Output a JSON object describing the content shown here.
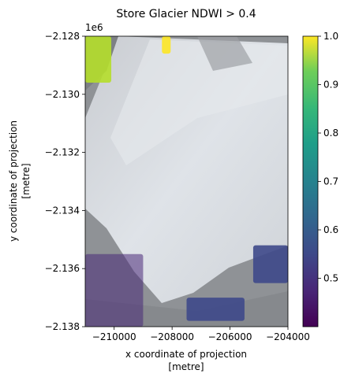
{
  "chart_data": {
    "type": "heatmap",
    "title": "Store Glacier NDWI > 0.4",
    "xlabel_line1": "x coordinate of projection",
    "xlabel_line2": "[metre]",
    "ylabel_line1": "y coordinate of projection",
    "ylabel_line2": "[metre]",
    "y_offset_text": "1e6",
    "xlim": [
      -211000,
      -204000
    ],
    "ylim": [
      -2.138,
      -2.128
    ],
    "x_ticks": [
      -210000,
      -208000,
      -206000,
      -204000
    ],
    "x_tick_labels": [
      "−210000",
      "−208000",
      "−206000",
      "−204000"
    ],
    "y_ticks": [
      -2.128,
      -2.13,
      -2.132,
      -2.134,
      -2.136,
      -2.138
    ],
    "y_tick_labels": [
      "−2.128",
      "−2.130",
      "−2.132",
      "−2.134",
      "−2.136",
      "−2.138"
    ],
    "colorbar": {
      "colormap": "viridis",
      "range": [
        0.4,
        1.0
      ],
      "ticks": [
        0.5,
        0.6,
        0.7,
        0.8,
        0.9,
        1.0
      ],
      "tick_labels": [
        "0.5",
        "0.6",
        "0.7",
        "0.8",
        "0.9",
        "1.0"
      ]
    },
    "overlay_regions": [
      {
        "name": "top-left water",
        "x": [
          -211000,
          -210100
        ],
        "y": [
          -2.1296,
          -2.128
        ],
        "ndwi": 0.9
      },
      {
        "name": "top fjord patch",
        "x": [
          -208350,
          -208050
        ],
        "y": [
          -2.1286,
          -2.128
        ],
        "ndwi": 0.98
      },
      {
        "name": "right ice-front melt pond",
        "x": [
          -205200,
          -204000
        ],
        "y": [
          -2.1365,
          -2.1352
        ],
        "ndwi": 0.55
      },
      {
        "name": "bottom melt pond",
        "x": [
          -207500,
          -205500
        ],
        "y": [
          -2.1378,
          -2.137
        ],
        "ndwi": 0.55
      },
      {
        "name": "bottom-left noise",
        "x": [
          -211000,
          -209000
        ],
        "y": [
          -2.138,
          -2.1355
        ],
        "ndwi": 0.45
      }
    ]
  }
}
